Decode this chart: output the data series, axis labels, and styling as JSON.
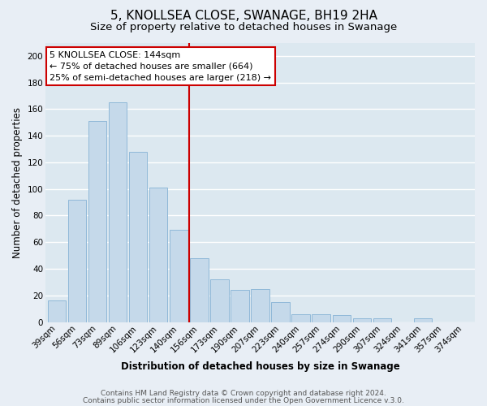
{
  "title": "5, KNOLLSEA CLOSE, SWANAGE, BH19 2HA",
  "subtitle": "Size of property relative to detached houses in Swanage",
  "xlabel": "Distribution of detached houses by size in Swanage",
  "ylabel": "Number of detached properties",
  "categories": [
    "39sqm",
    "56sqm",
    "73sqm",
    "89sqm",
    "106sqm",
    "123sqm",
    "140sqm",
    "156sqm",
    "173sqm",
    "190sqm",
    "207sqm",
    "223sqm",
    "240sqm",
    "257sqm",
    "274sqm",
    "290sqm",
    "307sqm",
    "324sqm",
    "341sqm",
    "357sqm",
    "374sqm"
  ],
  "values": [
    16,
    92,
    151,
    165,
    128,
    101,
    69,
    48,
    32,
    24,
    25,
    15,
    6,
    6,
    5,
    3,
    3,
    0,
    3,
    0,
    0
  ],
  "bar_color": "#c5d9ea",
  "bar_edge_color": "#8fb8d8",
  "vline_color": "#cc0000",
  "annotation_line1": "5 KNOLLSEA CLOSE: 144sqm",
  "annotation_line2": "← 75% of detached houses are smaller (664)",
  "annotation_line3": "25% of semi-detached houses are larger (218) →",
  "annotation_box_facecolor": "#ffffff",
  "annotation_box_edgecolor": "#cc0000",
  "ylim": [
    0,
    210
  ],
  "yticks": [
    0,
    20,
    40,
    60,
    80,
    100,
    120,
    140,
    160,
    180,
    200
  ],
  "footer_line1": "Contains HM Land Registry data © Crown copyright and database right 2024.",
  "footer_line2": "Contains public sector information licensed under the Open Government Licence v.3.0.",
  "bg_color": "#e8eef5",
  "plot_bg_color": "#dce8f0",
  "grid_color": "#ffffff",
  "title_fontsize": 11,
  "subtitle_fontsize": 9.5,
  "axis_label_fontsize": 8.5,
  "tick_fontsize": 7.5,
  "annotation_fontsize": 8,
  "footer_fontsize": 6.5
}
